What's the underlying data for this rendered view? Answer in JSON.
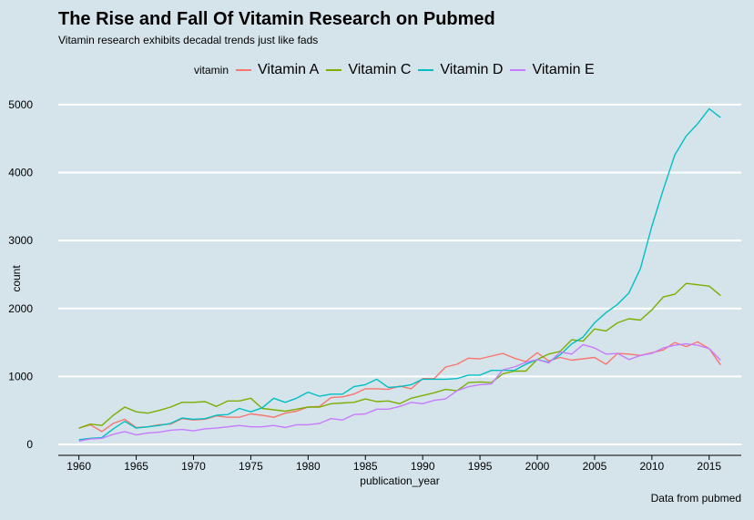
{
  "chart_data": {
    "type": "line",
    "title": "The Rise and Fall Of Vitamin Research on Pubmed",
    "subtitle": "Vitamin research exhibits decadal trends just like fads",
    "xlabel": "publication_year",
    "ylabel": "count",
    "caption": "Data from pubmed",
    "legend_title": "vitamin",
    "legend_position": "top",
    "grid": "horizontal",
    "xlim": [
      1958.2,
      2017.8
    ],
    "ylim": [
      -160,
      5200
    ],
    "x_ticks": [
      1960,
      1965,
      1970,
      1975,
      1980,
      1985,
      1990,
      1995,
      2000,
      2005,
      2010,
      2015
    ],
    "y_ticks": [
      0,
      1000,
      2000,
      3000,
      4000,
      5000
    ],
    "x": [
      1960,
      1961,
      1962,
      1963,
      1964,
      1965,
      1966,
      1967,
      1968,
      1969,
      1970,
      1971,
      1972,
      1973,
      1974,
      1975,
      1976,
      1977,
      1978,
      1979,
      1980,
      1981,
      1982,
      1983,
      1984,
      1985,
      1986,
      1987,
      1988,
      1989,
      1990,
      1991,
      1992,
      1993,
      1994,
      1995,
      1996,
      1997,
      1998,
      1999,
      2000,
      2001,
      2002,
      2003,
      2004,
      2005,
      2006,
      2007,
      2008,
      2009,
      2010,
      2011,
      2012,
      2013,
      2014,
      2015,
      2016
    ],
    "series": [
      {
        "name": "Vitamin A",
        "color": "#f8766d",
        "values": [
          240,
          290,
          190,
          310,
          370,
          250,
          260,
          290,
          300,
          380,
          360,
          370,
          420,
          400,
          400,
          450,
          430,
          400,
          460,
          490,
          550,
          560,
          690,
          700,
          740,
          820,
          820,
          810,
          860,
          820,
          970,
          970,
          1140,
          1180,
          1270,
          1260,
          1300,
          1340,
          1270,
          1220,
          1350,
          1230,
          1280,
          1240,
          1260,
          1280,
          1180,
          1340,
          1330,
          1310,
          1350,
          1390,
          1500,
          1440,
          1510,
          1410,
          1170
        ]
      },
      {
        "name": "Vitamin C",
        "color": "#7cae00",
        "values": [
          240,
          300,
          280,
          430,
          550,
          480,
          460,
          500,
          550,
          620,
          620,
          630,
          560,
          640,
          640,
          680,
          530,
          510,
          490,
          520,
          550,
          550,
          600,
          610,
          620,
          670,
          630,
          640,
          600,
          680,
          720,
          760,
          810,
          790,
          910,
          920,
          910,
          1040,
          1080,
          1080,
          1250,
          1330,
          1370,
          1540,
          1520,
          1700,
          1670,
          1790,
          1850,
          1830,
          1980,
          2170,
          2210,
          2370,
          2350,
          2330,
          2190
        ]
      },
      {
        "name": "Vitamin D",
        "color": "#00bfc4",
        "values": [
          70,
          90,
          100,
          230,
          340,
          240,
          260,
          280,
          310,
          390,
          370,
          380,
          430,
          440,
          530,
          480,
          540,
          680,
          620,
          680,
          770,
          710,
          740,
          740,
          850,
          880,
          960,
          840,
          850,
          880,
          960,
          960,
          960,
          970,
          1020,
          1020,
          1090,
          1090,
          1090,
          1180,
          1250,
          1210,
          1320,
          1480,
          1580,
          1790,
          1940,
          2060,
          2230,
          2590,
          3210,
          3750,
          4260,
          4540,
          4720,
          4940,
          4810
        ]
      },
      {
        "name": "Vitamin E",
        "color": "#c77cff",
        "values": [
          50,
          80,
          90,
          150,
          190,
          140,
          170,
          180,
          210,
          220,
          200,
          230,
          240,
          260,
          280,
          260,
          260,
          280,
          250,
          290,
          290,
          310,
          380,
          360,
          440,
          450,
          520,
          520,
          560,
          620,
          600,
          650,
          670,
          790,
          850,
          880,
          890,
          1100,
          1140,
          1210,
          1250,
          1200,
          1360,
          1330,
          1470,
          1420,
          1330,
          1340,
          1250,
          1310,
          1340,
          1420,
          1460,
          1480,
          1460,
          1410,
          1240
        ]
      }
    ]
  }
}
